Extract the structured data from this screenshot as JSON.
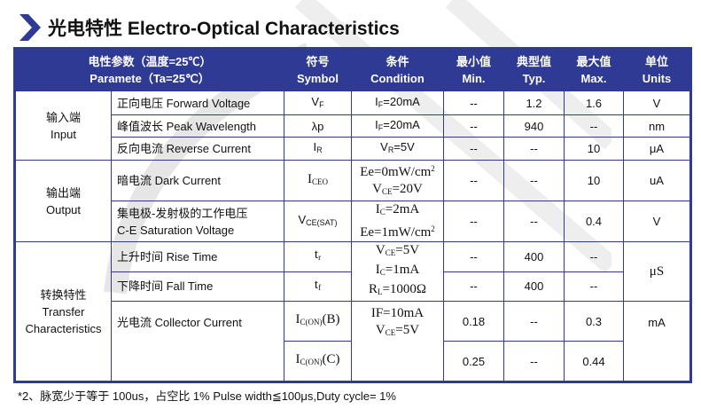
{
  "title": "光电特性 Electro-Optical Characteristics",
  "header": {
    "param_cn": "电性参数（温度=25℃）",
    "param_en": "Paramete（Ta=25℃）",
    "symbol_cn": "符号",
    "symbol_en": "Symbol",
    "cond_cn": "条件",
    "cond_en": "Condition",
    "min_cn": "最小值",
    "min_en": "Min.",
    "typ_cn": "典型值",
    "typ_en": "Typ.",
    "max_cn": "最大值",
    "max_en": "Max.",
    "unit_cn": "单位",
    "unit_en": "Units"
  },
  "groups": [
    {
      "cn": "输入端",
      "en": "Input"
    },
    {
      "cn": "输出端",
      "en": "Output"
    },
    {
      "cn": "转换特性",
      "en": "Transfer",
      "en2": "Characteristics"
    }
  ],
  "rows": [
    {
      "param": "正向电压 Forward Voltage",
      "symbol": {
        "a": "V",
        "sub": "F"
      },
      "cond": [
        {
          "a": "I",
          "sub": "F",
          "b": "=20mA"
        }
      ],
      "min": "--",
      "typ": "1.2",
      "max": "1.6",
      "unit": "V"
    },
    {
      "param": "峰值波长 Peak Wavelength",
      "symbol": {
        "a": "λp"
      },
      "cond": [
        {
          "a": "I",
          "sub": "F",
          "b": "=20mA"
        }
      ],
      "min": "--",
      "typ": "940",
      "max": "--",
      "unit": "nm"
    },
    {
      "param": "反向电流 Reverse Current",
      "symbol": {
        "a": "I",
        "sub": "R"
      },
      "cond": [
        {
          "a": "V",
          "sub": "R",
          "b": "=5V"
        }
      ],
      "min": "--",
      "typ": "--",
      "max": "10",
      "unit": "μA"
    },
    {
      "param": "暗电流 Dark Current",
      "symbol": {
        "a": "I",
        "sub": "CEO"
      },
      "cond": [
        {
          "a": "Ee=0mW/cm",
          "sup": "2"
        },
        {
          "a": "V",
          "sub": "CE",
          "b": "=20V"
        }
      ],
      "min": "--",
      "typ": "--",
      "max": "10",
      "unit": "uA"
    },
    {
      "param": "集电极-发射极的工作电压",
      "param2": "C-E Saturation Voltage",
      "symbol": {
        "a": "V",
        "sub": "CE(SAT)"
      },
      "cond": [
        {
          "a": "I",
          "sub": "C",
          "b": "=2mA"
        },
        {
          "a": "Ee=1mW/cm",
          "sup": "2"
        }
      ],
      "min": "--",
      "typ": "--",
      "max": "0.4",
      "unit": "V"
    },
    {
      "param": "上升时间 Rise Time",
      "symbol": {
        "a": "t",
        "sub": "r"
      },
      "cond": [
        {
          "a": "V",
          "sub": "CE",
          "b": "=5V"
        },
        {
          "a": "I",
          "sub": "C",
          "b": "=1mA"
        },
        {
          "a": "R",
          "sub": "L",
          "b": "=1000Ω"
        }
      ],
      "min": "--",
      "typ": "400",
      "max": "--",
      "unit": "μS"
    },
    {
      "param": "下降时间 Fall Time",
      "symbol": {
        "a": "t",
        "sub": "f"
      },
      "min": "--",
      "typ": "400",
      "max": "--"
    },
    {
      "param": "光电流 Collector Current",
      "symbol": {
        "a": "I",
        "sub": "C(ON)",
        "b": "(B)"
      },
      "cond": [
        {
          "a": "IF=10mA"
        },
        {
          "a": "V",
          "sub": "CE",
          "b": "=5V"
        }
      ],
      "min": "0.18",
      "typ": "--",
      "max": "0.3",
      "unit": "mA"
    },
    {
      "symbol": {
        "a": "I",
        "sub": "C(ON)",
        "b": "(C)"
      },
      "min": "0.25",
      "typ": "--",
      "max": "0.44"
    }
  ],
  "footnote": "*2、脉宽少于等于 100us，占空比 1% Pulse width≦100μs,Duty cycle= 1%",
  "colors": {
    "accent": "#2e3a94"
  }
}
